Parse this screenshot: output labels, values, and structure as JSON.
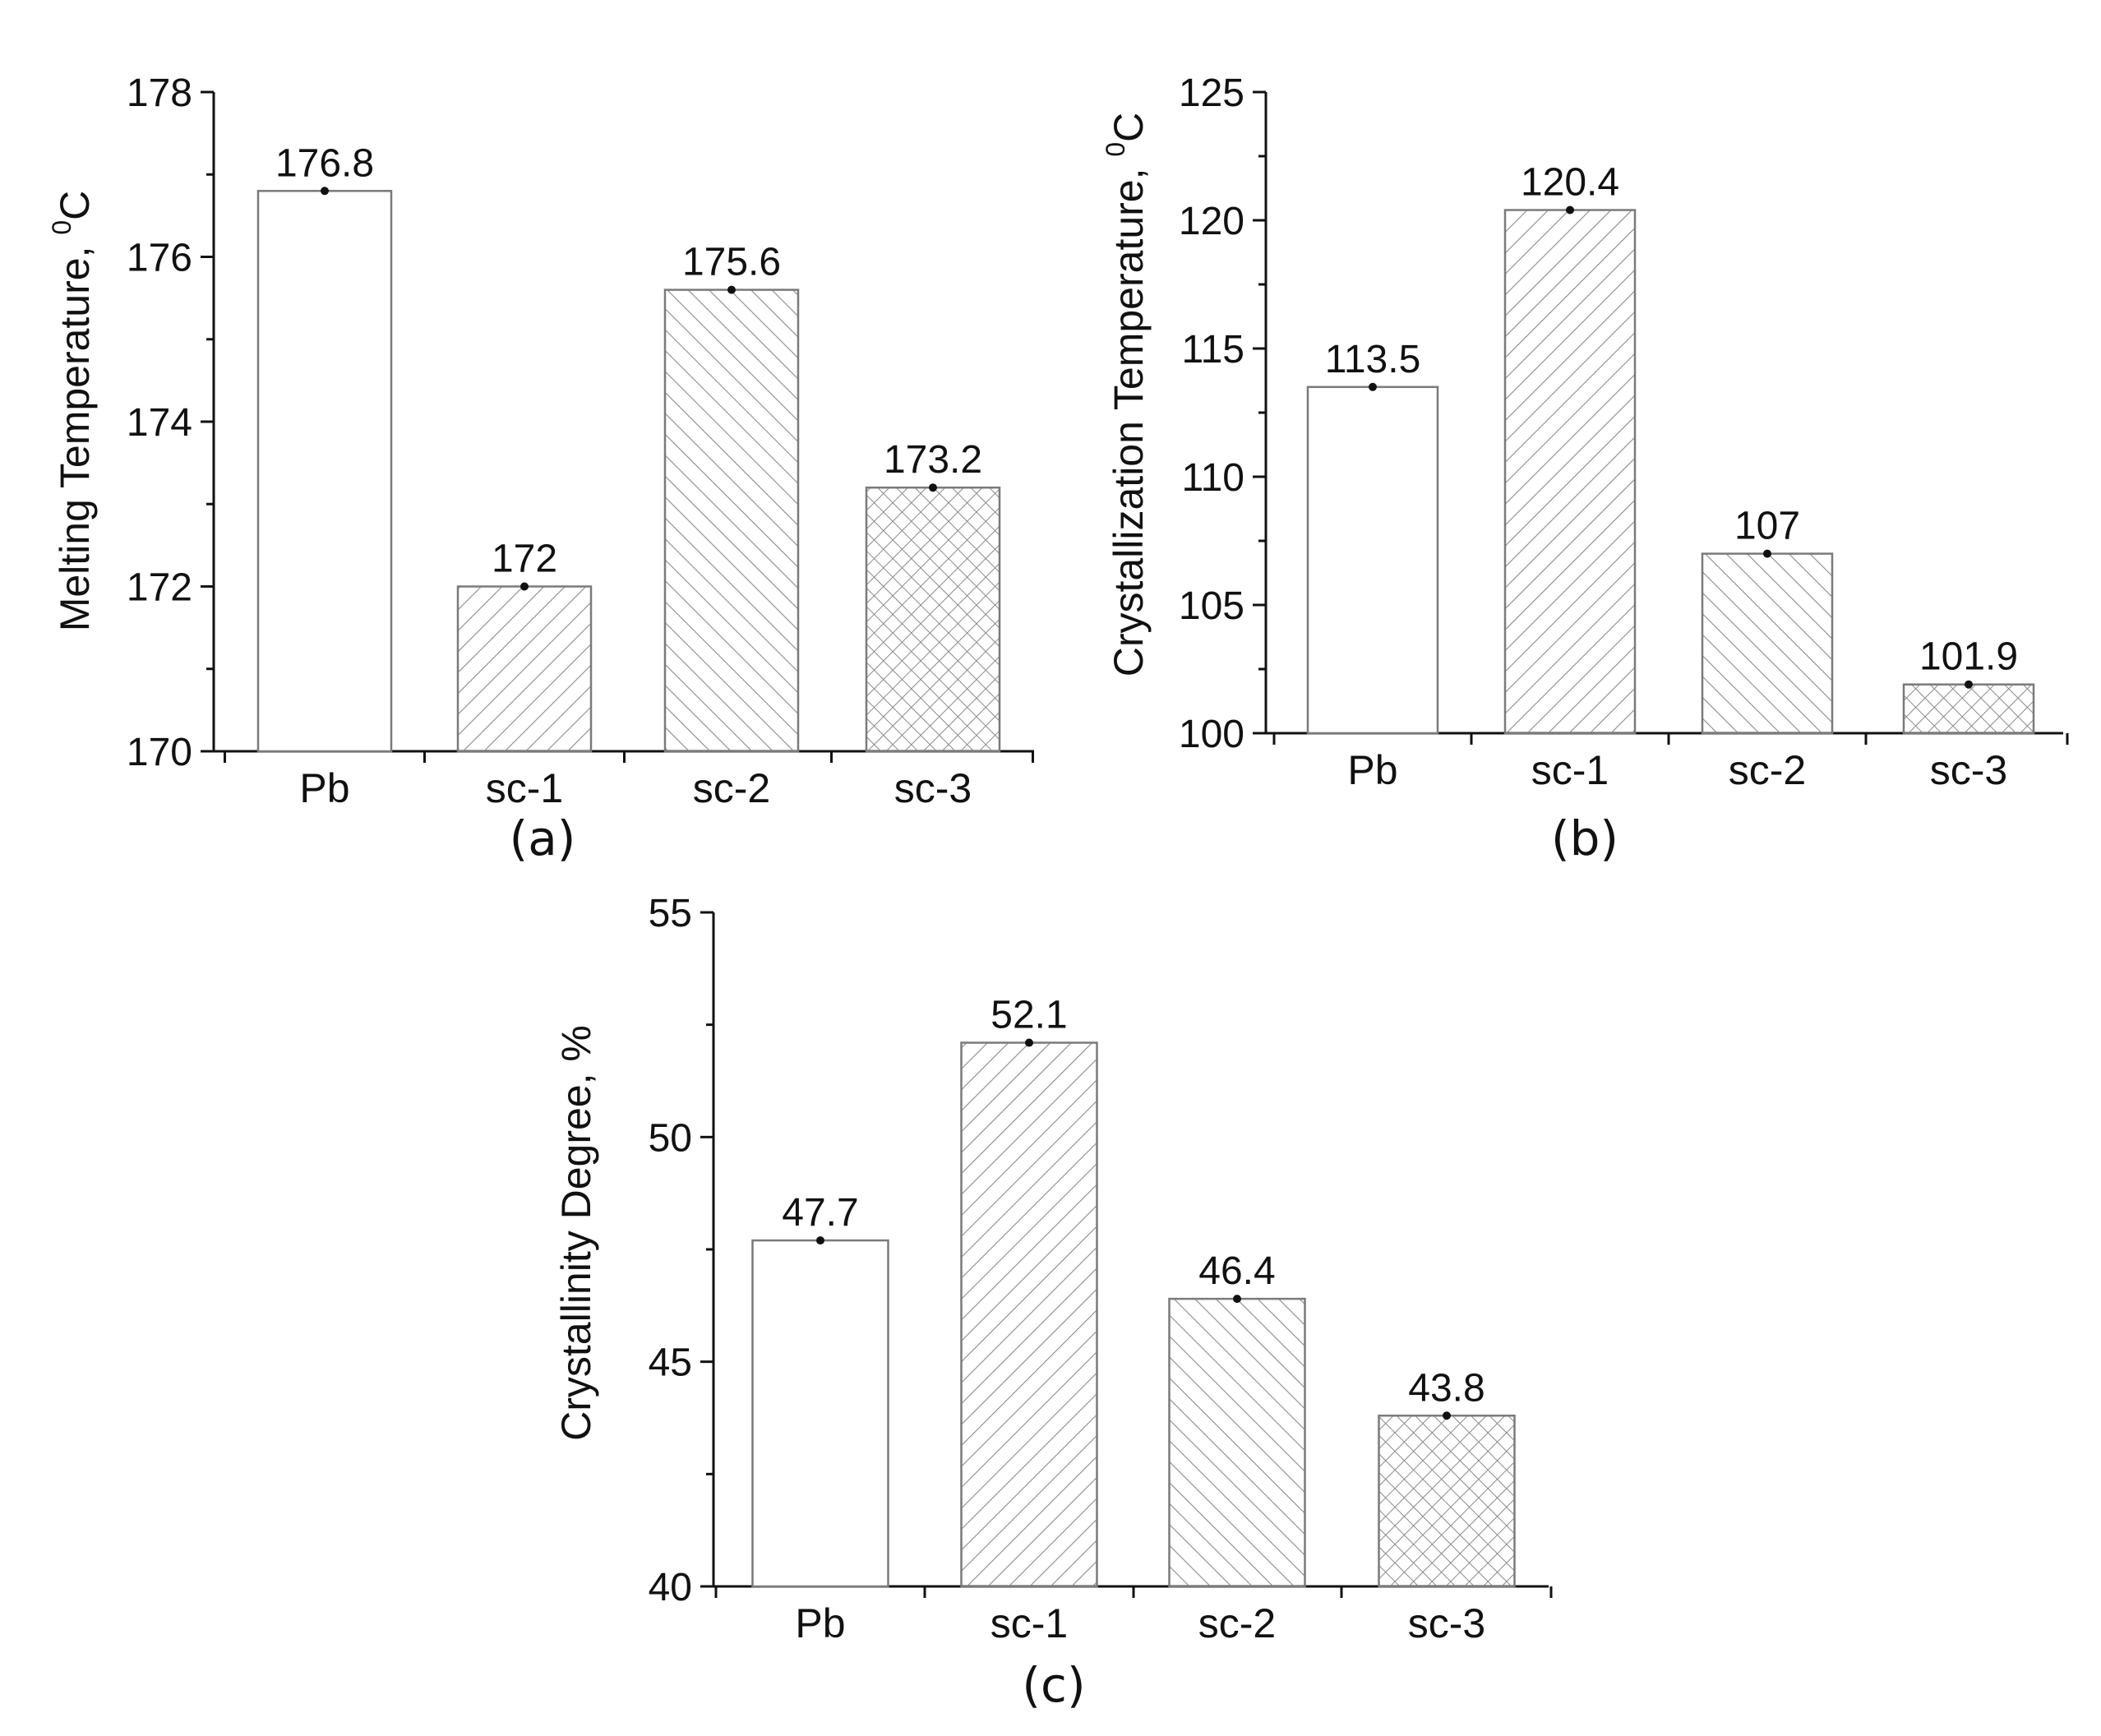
{
  "chart_data": [
    {
      "type": "bar",
      "panel_label": "(a)",
      "categories": [
        "Pb",
        "sc-1",
        "sc-2",
        "sc-3"
      ],
      "values": [
        176.8,
        172,
        175.6,
        173.2
      ],
      "data_labels": [
        "176.8",
        "172",
        "175.6",
        "173.2"
      ],
      "ylabel": "Melting Temperature, ",
      "ylabel_sup": "0",
      "ylabel_tail": "C",
      "ylim": [
        170,
        178
      ],
      "y_ticks": [
        "170",
        "172",
        "174",
        "176",
        "178"
      ],
      "bar_patterns": [
        "none",
        "forward-hatch",
        "back-hatch",
        "cross-hatch"
      ],
      "grid": false
    },
    {
      "type": "bar",
      "panel_label": "(b)",
      "categories": [
        "Pb",
        "sc-1",
        "sc-2",
        "sc-3"
      ],
      "values": [
        113.5,
        120.4,
        107,
        101.9
      ],
      "data_labels": [
        "113.5",
        "120.4",
        "107",
        "101.9"
      ],
      "ylabel": "Crystallization Temperature, ",
      "ylabel_sup": "0",
      "ylabel_tail": "C",
      "ylim": [
        100,
        125
      ],
      "y_ticks": [
        "100",
        "105",
        "110",
        "115",
        "120",
        "125"
      ],
      "bar_patterns": [
        "none",
        "forward-hatch",
        "back-hatch",
        "cross-hatch"
      ],
      "grid": false
    },
    {
      "type": "bar",
      "panel_label": "(c)",
      "categories": [
        "Pb",
        "sc-1",
        "sc-2",
        "sc-3"
      ],
      "values": [
        47.7,
        52.1,
        46.4,
        43.8
      ],
      "data_labels": [
        "47.7",
        "52.1",
        "46.4",
        "43.8"
      ],
      "ylabel": "Crystallinity Degree, %",
      "ylabel_sup": "",
      "ylabel_tail": "",
      "ylim": [
        40,
        55
      ],
      "y_ticks": [
        "40",
        "45",
        "50",
        "55"
      ],
      "bar_patterns": [
        "none",
        "forward-hatch",
        "back-hatch",
        "cross-hatch"
      ],
      "grid": false
    }
  ],
  "colors": {
    "axis": "#111111",
    "bar_outline": "#7a7a7a",
    "hatch": "#8a8a8a",
    "bar_fill": "#ffffff"
  }
}
